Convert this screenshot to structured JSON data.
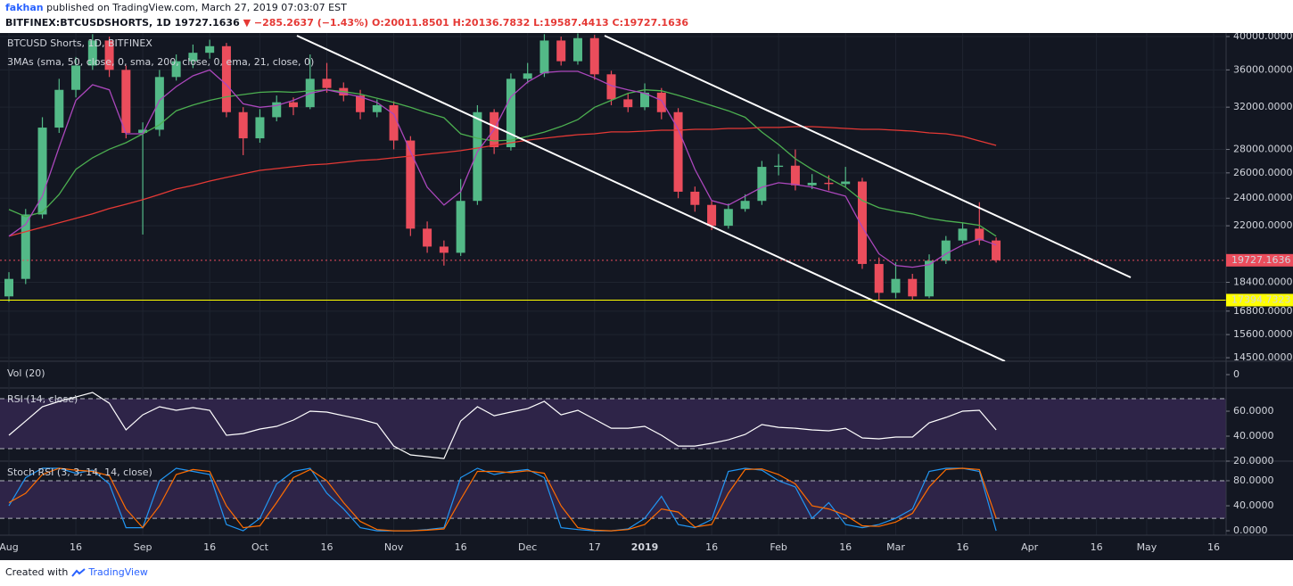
{
  "header": {
    "author": "fakhan",
    "published": "published on TradingView.com, March 27, 2019 07:03:07 EST",
    "symbol": "BITFINEX:BTCUSDSHORTS, 1D",
    "last": "19727.1636",
    "change": "−285.2637 (−1.43%)",
    "open": "O:20011.8501",
    "high": "H:20136.7832",
    "low": "L:19587.4413",
    "close": "C:19727.1636"
  },
  "footer": {
    "created": "Created with",
    "brand": "TradingView"
  },
  "chart_data": [
    {
      "type": "candlestick",
      "title": "BTCUSD Shorts, 1D, BITFINEX",
      "subtitle": "3MAs (sma, 50, close, 0, sma, 200, close, 0, ema, 21, close, 0)",
      "log": true,
      "grid": true,
      "up_color": "#53b987",
      "down_color": "#eb4d5c",
      "ylim": [
        14340,
        40450
      ],
      "yticks": [
        {
          "value": 40000,
          "label": "40000.0000"
        },
        {
          "value": 36000,
          "label": "36000.0000"
        },
        {
          "value": 32000,
          "label": "32000.0000"
        },
        {
          "value": 28000,
          "label": "28000.0000"
        },
        {
          "value": 26000,
          "label": "26000.0000"
        },
        {
          "value": 24000,
          "label": "24000.0000"
        },
        {
          "value": 22000,
          "label": "22000.0000"
        },
        {
          "value": 18400,
          "label": "18400.0000"
        },
        {
          "value": 16800,
          "label": "16800.0000"
        },
        {
          "value": 15600,
          "label": "15600.0000"
        },
        {
          "value": 14500,
          "label": "14500.0000"
        }
      ],
      "categories": [
        "Aug",
        null,
        null,
        null,
        "16",
        null,
        null,
        null,
        "Sep",
        null,
        null,
        null,
        "16",
        null,
        null,
        "Oct",
        null,
        null,
        null,
        "16",
        null,
        null,
        null,
        "Nov",
        null,
        null,
        null,
        "16",
        null,
        null,
        null,
        "Dec",
        null,
        null,
        null,
        "17",
        null,
        null,
        "2019",
        null,
        null,
        null,
        "16",
        null,
        null,
        null,
        "Feb",
        null,
        null,
        null,
        "16",
        null,
        null,
        "Mar",
        null,
        null,
        null,
        "16",
        null,
        null,
        null,
        "Apr",
        null,
        null,
        null,
        "16",
        null,
        null,
        "May",
        null,
        null,
        null,
        "16"
      ],
      "ohlc": [
        [
          17600,
          19000,
          17300,
          18600
        ],
        [
          18600,
          23200,
          18300,
          22800
        ],
        [
          22800,
          31000,
          22500,
          30000
        ],
        [
          30000,
          35000,
          29500,
          33800
        ],
        [
          33800,
          37500,
          33000,
          36500
        ],
        [
          36500,
          40300,
          36000,
          39500
        ],
        [
          39500,
          40000,
          35200,
          36000
        ],
        [
          36000,
          36500,
          29000,
          29500
        ],
        [
          29500,
          30500,
          21400,
          29800
        ],
        [
          29800,
          36000,
          29200,
          35200
        ],
        [
          35200,
          37800,
          34800,
          37000
        ],
        [
          37000,
          39000,
          36200,
          38000
        ],
        [
          38000,
          39600,
          37300,
          38800
        ],
        [
          38800,
          39200,
          31000,
          31500
        ],
        [
          31500,
          32000,
          27500,
          29000
        ],
        [
          29000,
          31800,
          28600,
          31000
        ],
        [
          31000,
          33200,
          30600,
          32500
        ],
        [
          32500,
          33000,
          31200,
          32000
        ],
        [
          32000,
          37800,
          31800,
          35000
        ],
        [
          35000,
          36800,
          33500,
          34000
        ],
        [
          34000,
          34600,
          32600,
          33200
        ],
        [
          33200,
          33800,
          30800,
          31500
        ],
        [
          31500,
          32800,
          31000,
          32200
        ],
        [
          32200,
          32600,
          28000,
          28800
        ],
        [
          28800,
          29200,
          21300,
          21800
        ],
        [
          21800,
          22300,
          20200,
          20600
        ],
        [
          20600,
          21000,
          19400,
          20200
        ],
        [
          20200,
          25500,
          20000,
          23800
        ],
        [
          23800,
          32200,
          23500,
          31500
        ],
        [
          31500,
          31800,
          27600,
          28200
        ],
        [
          28200,
          35600,
          27900,
          35000
        ],
        [
          35000,
          36800,
          34500,
          35600
        ],
        [
          35600,
          40300,
          35200,
          39500
        ],
        [
          39500,
          40000,
          36500,
          37000
        ],
        [
          37000,
          40400,
          36600,
          39800
        ],
        [
          39800,
          40200,
          34900,
          35500
        ],
        [
          35500,
          35900,
          32200,
          32800
        ],
        [
          32800,
          33400,
          31500,
          32000
        ],
        [
          32000,
          34500,
          31700,
          33500
        ],
        [
          33500,
          34000,
          30800,
          31500
        ],
        [
          31500,
          31900,
          24000,
          24500
        ],
        [
          24500,
          24900,
          23000,
          23500
        ],
        [
          23500,
          23800,
          21700,
          22000
        ],
        [
          22000,
          23600,
          21800,
          23200
        ],
        [
          23200,
          24300,
          23000,
          23800
        ],
        [
          23800,
          27000,
          23500,
          26500
        ],
        [
          26500,
          27600,
          25800,
          26600
        ],
        [
          26600,
          28000,
          24600,
          25000
        ],
        [
          25000,
          25900,
          24700,
          25200
        ],
        [
          25200,
          25800,
          24600,
          25100
        ],
        [
          25100,
          26500,
          24800,
          25300
        ],
        [
          25300,
          25600,
          19200,
          19500
        ],
        [
          19500,
          19900,
          17400,
          17800
        ],
        [
          17800,
          19600,
          17500,
          18600
        ],
        [
          18600,
          18900,
          17400,
          17600
        ],
        [
          17600,
          20100,
          17500,
          19700
        ],
        [
          19700,
          21300,
          19500,
          21000
        ],
        [
          21000,
          22200,
          20800,
          21800
        ],
        [
          21800,
          23700,
          20700,
          21000
        ],
        [
          21000,
          21200,
          19587.4413,
          19727.1636
        ],
        null,
        null,
        null,
        null,
        null,
        null,
        null,
        null,
        null,
        null,
        null,
        null,
        null
      ],
      "series": [
        {
          "color": "#4caf50",
          "values": [
            23160,
            22650,
            22970,
            24290,
            26290,
            27270,
            28020,
            28600,
            29420,
            30280,
            31640,
            32220,
            32700,
            33070,
            33300,
            33540,
            33610,
            33540,
            33700,
            33800,
            33610,
            33350,
            32920,
            32480,
            31990,
            31430,
            30950,
            29420,
            29010,
            28760,
            28840,
            29180,
            29580,
            30110,
            30770,
            31990,
            32700,
            33430,
            33800,
            33700,
            33220,
            32700,
            32160,
            31640,
            30990,
            29580,
            28440,
            27190,
            26290,
            25560,
            24850,
            23820,
            23290,
            23030,
            22840,
            22520,
            22340,
            22210,
            22030,
            21290,
            null,
            null,
            null,
            null,
            null,
            null,
            null,
            null,
            null,
            null,
            null,
            null,
            null
          ]
        },
        {
          "color": "#e53935",
          "values": [
            21290,
            21590,
            21900,
            22210,
            22520,
            22840,
            23230,
            23550,
            23890,
            24290,
            24710,
            24990,
            25340,
            25630,
            25920,
            26210,
            26360,
            26510,
            26660,
            26740,
            26890,
            27040,
            27120,
            27270,
            27420,
            27580,
            27730,
            27890,
            28120,
            28360,
            28600,
            28840,
            29010,
            29180,
            29340,
            29420,
            29590,
            29590,
            29670,
            29750,
            29750,
            29840,
            29840,
            29920,
            29920,
            30010,
            30010,
            30090,
            30090,
            30010,
            29920,
            29840,
            29840,
            29750,
            29670,
            29500,
            29420,
            29180,
            28760,
            28360,
            null,
            null,
            null,
            null,
            null,
            null,
            null,
            null,
            null,
            null,
            null,
            null,
            null
          ]
        },
        {
          "color": "#ab47bc",
          "values": [
            21290,
            22100,
            24160,
            28200,
            32700,
            34350,
            33800,
            29420,
            29420,
            32700,
            34150,
            35330,
            36000,
            34350,
            32340,
            31990,
            32160,
            32700,
            33430,
            33800,
            33430,
            33070,
            32480,
            31290,
            27810,
            24850,
            23490,
            24500,
            27810,
            29840,
            33070,
            34650,
            35700,
            35830,
            35830,
            35100,
            34250,
            33800,
            33430,
            32700,
            29840,
            26290,
            23820,
            23490,
            24160,
            24850,
            25200,
            25060,
            24850,
            24500,
            24160,
            21900,
            20130,
            19410,
            19300,
            19460,
            20130,
            20700,
            21110,
            20700,
            null,
            null,
            null,
            null,
            null,
            null,
            null,
            null,
            null,
            null,
            null,
            null,
            null
          ]
        }
      ],
      "price_lines": [
        {
          "value": 19727.1636,
          "color": "#eb4d5c",
          "text_color": "#ffffff",
          "dashed": true
        },
        {
          "value": 17394.7323,
          "color": "#ffff00",
          "text_color": "#000000",
          "dashed": false
        }
      ]
    },
    {
      "type": "bar",
      "title": "Vol (20)",
      "yticks": [
        0
      ]
    },
    {
      "type": "line",
      "title": "RSI (14, close)",
      "ylim": [
        20,
        78.6
      ],
      "yticks": [
        {
          "value": 60,
          "label": "60.0000"
        },
        {
          "value": 40,
          "label": "40.0000"
        },
        {
          "value": 20,
          "label": "20.0000"
        }
      ],
      "bands": [
        30,
        70
      ],
      "band_color": "#2e2448",
      "series": [
        {
          "color": "#ffffff",
          "values": [
            40.7,
            52.1,
            63.6,
            67.9,
            71.4,
            75,
            66.4,
            45,
            57.1,
            63.6,
            60.7,
            62.9,
            60.7,
            40.7,
            42.1,
            45.7,
            47.9,
            52.9,
            60,
            59.3,
            56.4,
            53.6,
            50,
            32.1,
            25,
            23.6,
            22.1,
            52.1,
            63.6,
            56.4,
            59.3,
            62.1,
            67.9,
            57.1,
            60.7,
            53.6,
            46.4,
            46.4,
            47.9,
            40.7,
            32.1,
            32.1,
            34.3,
            37.1,
            41.4,
            49.3,
            47.1,
            46.4,
            45,
            44.3,
            46.4,
            38.6,
            37.9,
            39.3,
            39.3,
            50.7,
            55,
            60,
            60.7,
            45,
            null,
            null,
            null,
            null,
            null,
            null,
            null,
            null,
            null,
            null,
            null,
            null,
            null
          ]
        }
      ]
    },
    {
      "type": "line",
      "title": "Stoch RSI (3, 3, 14, 14, close)",
      "ylim": [
        -7,
        111.4
      ],
      "yticks": [
        {
          "value": 80,
          "label": "80.0000"
        },
        {
          "value": 40,
          "label": "40.0000"
        },
        {
          "value": 0,
          "label": "0.0000"
        }
      ],
      "bands": [
        20,
        80
      ],
      "band_color": "#2e2448",
      "series": [
        {
          "color": "#2196f3",
          "values": [
            40,
            85,
            100,
            100,
            92,
            97,
            75,
            5,
            5,
            80,
            100,
            95,
            90,
            10,
            0,
            20,
            75,
            95,
            100,
            60,
            35,
            5,
            0,
            0,
            0,
            2,
            5,
            85,
            100,
            90,
            95,
            98,
            85,
            5,
            2,
            0,
            0,
            3,
            20,
            55,
            10,
            5,
            18,
            95,
            100,
            97,
            80,
            70,
            20,
            45,
            10,
            5,
            10,
            20,
            35,
            95,
            100,
            100,
            95,
            0,
            null,
            null,
            null,
            null,
            null,
            null,
            null,
            null,
            null,
            null,
            null,
            null,
            null
          ]
        },
        {
          "color": "#ff6d00",
          "values": [
            45,
            60,
            90,
            100,
            97,
            95,
            88,
            35,
            5,
            40,
            90,
            98,
            95,
            40,
            5,
            8,
            45,
            85,
            98,
            80,
            45,
            15,
            2,
            0,
            0,
            1,
            3,
            50,
            95,
            95,
            93,
            96,
            92,
            40,
            5,
            1,
            0,
            2,
            10,
            35,
            30,
            6,
            10,
            60,
            98,
            99,
            90,
            75,
            40,
            35,
            25,
            8,
            7,
            14,
            28,
            70,
            98,
            100,
            98,
            20,
            null,
            null,
            null,
            null,
            null,
            null,
            null,
            null,
            null,
            null,
            null,
            null,
            null
          ]
        }
      ]
    }
  ]
}
